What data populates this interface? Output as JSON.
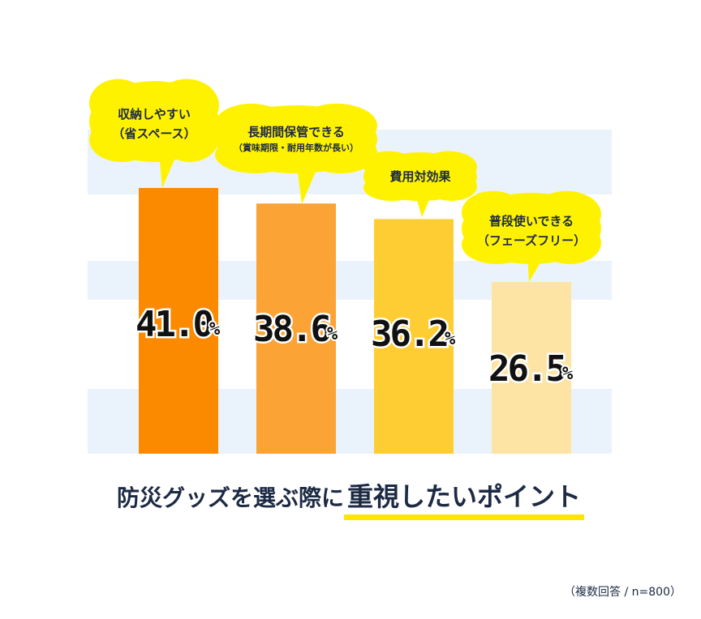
{
  "title": {
    "prefix": "防災グッズを選ぶ際に",
    "emphasis": "重視したいポイント"
  },
  "note": "（複数回答 / n=800）",
  "colors": {
    "stripe": "#eaf3fb",
    "bubble": "#fff200",
    "text": "#1c2a44",
    "underline": "#ffe600"
  },
  "chart_data": {
    "type": "bar",
    "categories": [
      {
        "line1": "収納しやすい",
        "line2": "（省スペース）"
      },
      {
        "line1": "長期間保管できる",
        "line2": "（賞味期限・耐用年数が長い）"
      },
      {
        "line1": "費用対効果",
        "line2": ""
      },
      {
        "line1": "普段使いできる",
        "line2": "（フェーズフリー）"
      }
    ],
    "values": [
      41.0,
      38.6,
      36.2,
      26.5
    ],
    "value_labels": [
      "41.0",
      "38.6",
      "36.2",
      "26.5"
    ],
    "unit": "%",
    "bar_colors": [
      "#fb8a00",
      "#fca336",
      "#fecd33",
      "#fde4a5"
    ],
    "ylim": [
      0,
      50
    ],
    "grid": "striped background"
  }
}
